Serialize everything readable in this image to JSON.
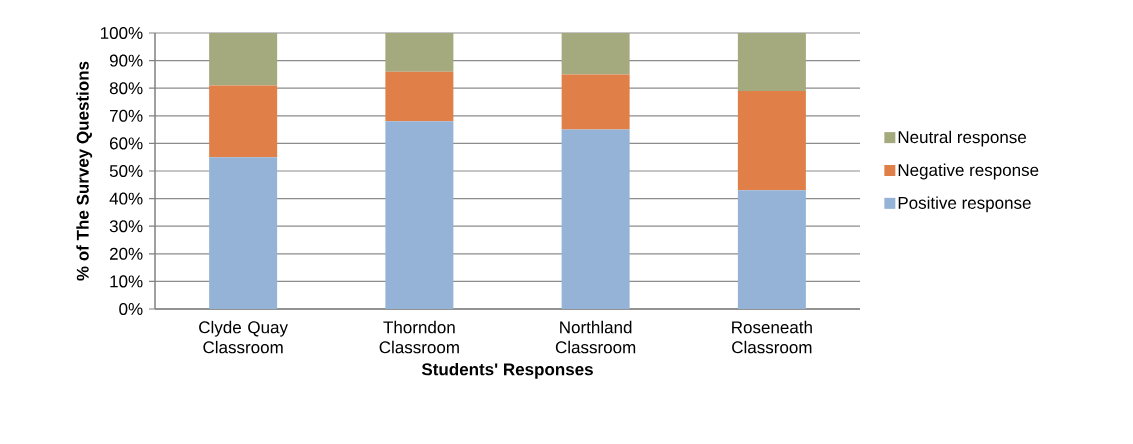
{
  "chart_data": {
    "type": "bar",
    "stacked": true,
    "xlabel": "Students' Responses",
    "ylabel": "% of The Survey Questions",
    "categories": [
      "Clyde Quay Classroom",
      "Thorndon Classroom",
      "Northland Classroom",
      "Roseneath Classroom"
    ],
    "series": [
      {
        "name": "Positive response",
        "color": "#95b3d7",
        "values": [
          55,
          68,
          65,
          43
        ]
      },
      {
        "name": "Negative response",
        "color": "#e07f47",
        "values": [
          26,
          18,
          20,
          36
        ]
      },
      {
        "name": "Neutral response",
        "color": "#a4a97e",
        "values": [
          19,
          14,
          15,
          21
        ]
      }
    ],
    "ylim": [
      0,
      100
    ],
    "yticks": [
      {
        "value": 0,
        "label": "0%"
      },
      {
        "value": 10,
        "label": "10%"
      },
      {
        "value": 20,
        "label": "20%"
      },
      {
        "value": 30,
        "label": "30%"
      },
      {
        "value": 40,
        "label": "40%"
      },
      {
        "value": 50,
        "label": "50%"
      },
      {
        "value": 60,
        "label": "60%"
      },
      {
        "value": 70,
        "label": "70%"
      },
      {
        "value": 80,
        "label": "80%"
      },
      {
        "value": 90,
        "label": "90%"
      },
      {
        "value": 100,
        "label": "100%"
      }
    ],
    "grid": "y",
    "legend": "right"
  }
}
